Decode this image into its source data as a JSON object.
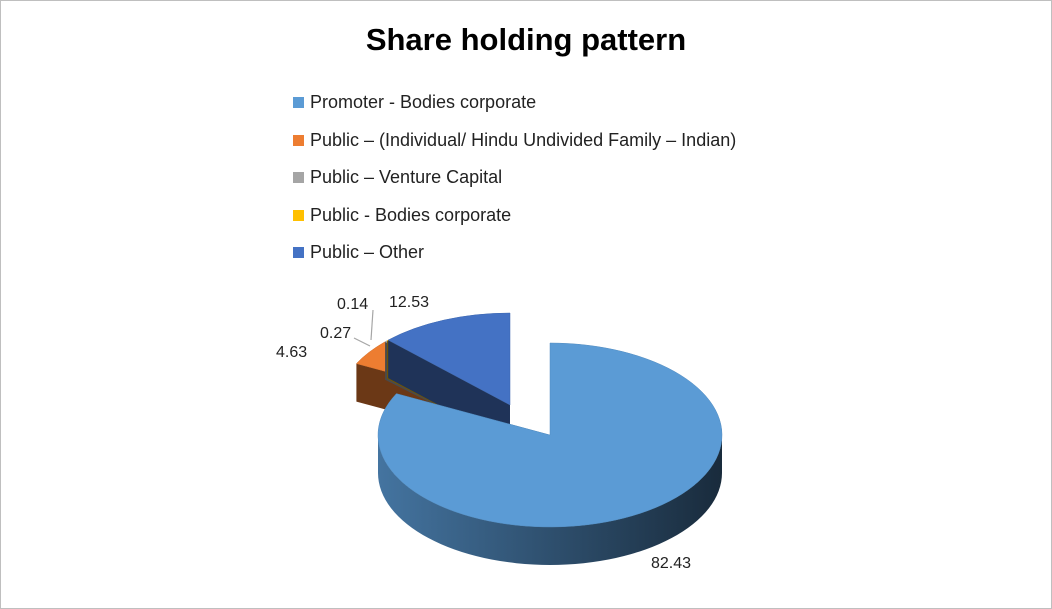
{
  "chart_data": {
    "type": "pie",
    "title": "Share holding pattern",
    "legend_position": "top",
    "three_d": true,
    "exploded_slice": "Promoter - Bodies corporate",
    "slices": [
      {
        "label": "Promoter - Bodies corporate",
        "value": 82.43,
        "value_label": "82.43",
        "color": "#5b9bd5"
      },
      {
        "label": "Public  – (Individual/ Hindu Undivided Family – Indian)",
        "value": 4.63,
        "value_label": "4.63",
        "color": "#ed7d31"
      },
      {
        "label": "Public  – Venture Capital",
        "value": 0.27,
        "value_label": "0.27",
        "color": "#a5a5a5"
      },
      {
        "label": "Public - Bodies corporate",
        "value": 0.14,
        "value_label": "0.14",
        "color": "#ffc000"
      },
      {
        "label": "Public  – Other",
        "value": 12.53,
        "value_label": "12.53",
        "color": "#4472c4"
      }
    ]
  }
}
